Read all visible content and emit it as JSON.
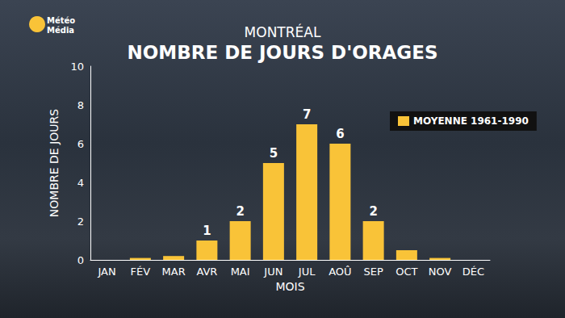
{
  "chart_data": {
    "type": "bar",
    "subtitle": "MONTRÉAL",
    "title": "NOMBRE DE JOURS D'ORAGES",
    "logo_lines": [
      "Météo",
      "Média"
    ],
    "x_label": "MOIS",
    "y_label": "NOMBRE DE JOURS",
    "categories": [
      "JAN",
      "FÉV",
      "MAR",
      "AVR",
      "MAI",
      "JUN",
      "JUL",
      "AOÛ",
      "SEP",
      "OCT",
      "NOV",
      "DÉC"
    ],
    "series": [
      {
        "name": "MOYENNE 1961-1990",
        "color": "#f9c338",
        "values": [
          0,
          0.1,
          0.2,
          1,
          2,
          5,
          7,
          6,
          2,
          0.5,
          0.1,
          0
        ],
        "value_labels": [
          null,
          null,
          null,
          "1",
          "2",
          "5",
          "7",
          "6",
          "2",
          null,
          null,
          null
        ]
      }
    ],
    "ylim": [
      0,
      10
    ],
    "yticks": [
      0,
      2,
      4,
      6,
      8,
      10
    ],
    "grid": false,
    "legend": "top-right",
    "data_labels": true
  }
}
